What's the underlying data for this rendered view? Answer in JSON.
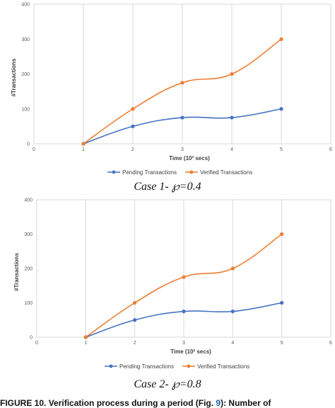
{
  "chart_data": [
    {
      "type": "line",
      "title": "",
      "xlabel": "Time (10² secs)",
      "ylabel": "#Transactions",
      "xlim": [
        0,
        6
      ],
      "ylim": [
        0,
        400
      ],
      "x_ticks": [
        "0",
        "1",
        "2",
        "3",
        "4",
        "5",
        "6"
      ],
      "y_ticks": [
        "0",
        "100",
        "200",
        "300",
        "400"
      ],
      "grid": "vertical",
      "legend_position": "bottom",
      "x": [
        1,
        2,
        3,
        4,
        5
      ],
      "series": [
        {
          "name": "Pending Transactions",
          "color": "#4472c4",
          "values": [
            0,
            50,
            75,
            75,
            100
          ]
        },
        {
          "name": "Verified Transactions",
          "color": "#ed7d31",
          "values": [
            0,
            100,
            175,
            200,
            300
          ]
        }
      ]
    },
    {
      "type": "line",
      "title": "",
      "xlabel": "Time (10² secs)",
      "ylabel": "#Transactions",
      "xlim": [
        0,
        6
      ],
      "ylim": [
        0,
        400
      ],
      "x_ticks": [
        "0",
        "1",
        "2",
        "3",
        "4",
        "5",
        "6"
      ],
      "y_ticks": [
        "0",
        "100",
        "200",
        "300",
        "400"
      ],
      "grid": "vertical",
      "legend_position": "bottom",
      "x": [
        1,
        2,
        3,
        4,
        5
      ],
      "series": [
        {
          "name": "Pending Transactions",
          "color": "#4472c4",
          "values": [
            0,
            50,
            75,
            75,
            100
          ]
        },
        {
          "name": "Verified Transactions",
          "color": "#ed7d31",
          "values": [
            0,
            100,
            175,
            200,
            300
          ]
        }
      ]
    }
  ],
  "captions": {
    "case1": "Case 1- ℘=0.4",
    "case2": "Case 2- ℘=0.8"
  },
  "figure_caption": {
    "label": "FIGURE 10.",
    "text_before": " Verification process during a period (Fig. ",
    "ref": "9",
    "text_after": "): Number of"
  }
}
